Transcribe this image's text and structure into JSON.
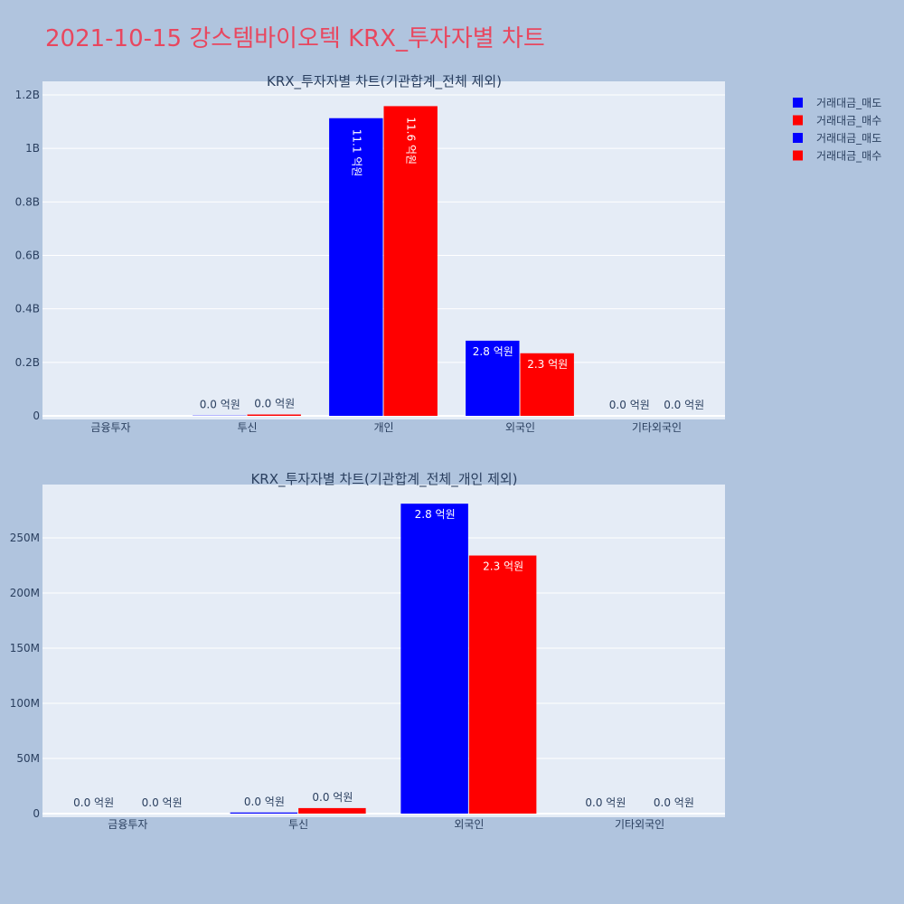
{
  "page": {
    "title": "2021-10-15 강스템바이오텍 KRX_투자자별 차트"
  },
  "colors": {
    "sell": "#0000ff",
    "buy": "#ff0000",
    "plot_bg": "#e5ecf6",
    "page_bg": "#b0c4de",
    "title": "#e8475f"
  },
  "legend": {
    "items": [
      {
        "label": "거래대금_매도",
        "color": "#0000ff"
      },
      {
        "label": "거래대금_매수",
        "color": "#ff0000"
      },
      {
        "label": "거래대금_매도",
        "color": "#0000ff"
      },
      {
        "label": "거래대금_매수",
        "color": "#ff0000"
      }
    ]
  },
  "chart_data": [
    {
      "type": "bar",
      "title": "KRX_투자자별 차트(기관합계_전체 제외)",
      "categories": [
        "금융투자",
        "투신",
        "개인",
        "외국인",
        "기타외국인"
      ],
      "series": [
        {
          "name": "거래대금_매도",
          "color": "#0000ff",
          "values": [
            0,
            1000000,
            1113000000,
            281000000,
            0
          ],
          "labels": [
            "",
            "0.0 억원",
            "11.1 억원",
            "2.8 억원",
            "0.0 억원"
          ]
        },
        {
          "name": "거래대금_매수",
          "color": "#ff0000",
          "values": [
            0,
            5000000,
            1158000000,
            234000000,
            0
          ],
          "labels": [
            "",
            "0.0 억원",
            "11.6 억원",
            "2.3 억원",
            "0.0 억원"
          ]
        }
      ],
      "ylim": [
        0,
        1200000000
      ],
      "yticks": [
        0,
        200000000,
        400000000,
        600000000,
        800000000,
        1000000000,
        1200000000
      ],
      "yticklabels": [
        "0",
        "0.2B",
        "0.4B",
        "0.6B",
        "0.8B",
        "1B",
        "1.2B"
      ],
      "grid": true,
      "legend_position": "top-right"
    },
    {
      "type": "bar",
      "title": "KRX_투자자별 차트(기관합계_전체_개인 제외)",
      "categories": [
        "금융투자",
        "투신",
        "외국인",
        "기타외국인"
      ],
      "series": [
        {
          "name": "거래대금_매도",
          "color": "#0000ff",
          "values": [
            0,
            1000000,
            281000000,
            0
          ],
          "labels": [
            "0.0 억원",
            "0.0 억원",
            "2.8 억원",
            "0.0 억원"
          ]
        },
        {
          "name": "거래대금_매수",
          "color": "#ff0000",
          "values": [
            0,
            5000000,
            234000000,
            0
          ],
          "labels": [
            "0.0 억원",
            "0.0 억원",
            "2.3 억원",
            "0.0 억원"
          ]
        }
      ],
      "ylim": [
        0,
        300000000
      ],
      "yticks": [
        0,
        50000000,
        100000000,
        150000000,
        200000000,
        250000000
      ],
      "yticklabels": [
        "0",
        "50M",
        "100M",
        "150M",
        "200M",
        "250M"
      ],
      "grid": true
    }
  ]
}
